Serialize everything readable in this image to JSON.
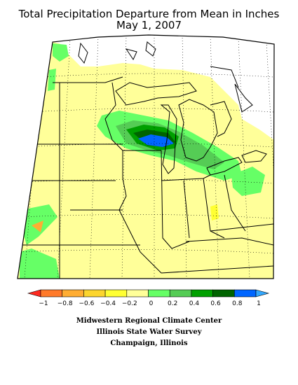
{
  "header": {
    "title_line1": "Total Precipitation Departure from Mean in Inches",
    "title_line2": "May 1, 2007"
  },
  "legend": {
    "labels": [
      "−1",
      "−0.8",
      "−0.6",
      "−0.4",
      "−0.2",
      "0",
      "0.2",
      "0.4",
      "0.6",
      "0.8",
      "1"
    ],
    "colors": [
      "#ff2a20",
      "#ff7a2a",
      "#ffad33",
      "#fcd52e",
      "#ffff33",
      "#ffff99",
      "#66ff66",
      "#55cc55",
      "#00a000",
      "#006400",
      "#0066ff",
      "#33a8ff"
    ]
  },
  "footer": {
    "line1": "Midwestern Regional Climate Center",
    "line2": "Illinois State Water Survey",
    "line3": "Champaign, Illinois"
  }
}
